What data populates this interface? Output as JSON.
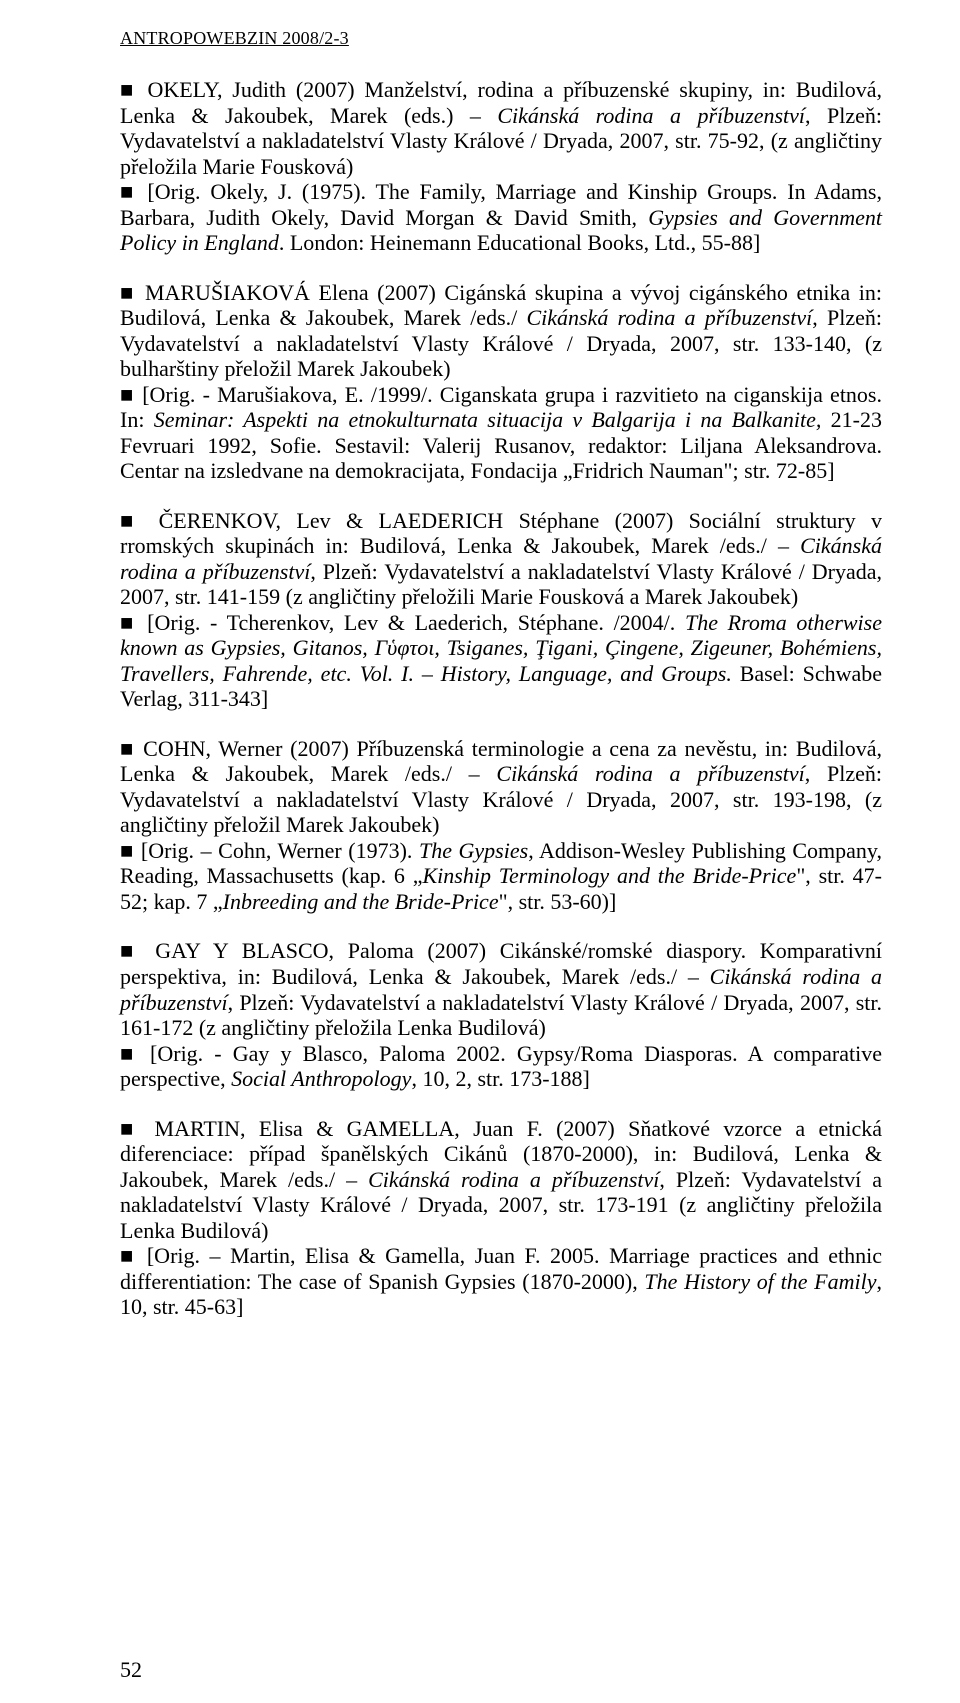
{
  "header": "ANTROPOWEBZIN 2008/2-3",
  "page_number": "52",
  "entries": [
    {
      "main_segments": [
        {
          "text": "■ OKELY, Judith (2007) Manželství, rodina a příbuzenské skupiny, in: Budilová, Lenka & Jakoubek, Marek (eds.) – "
        },
        {
          "text": "Cikánská rodina a příbuzenství",
          "italic": true
        },
        {
          "text": ", Plzeň: Vydavatelství a nakladatelství Vlasty Králové / Dryada, 2007, str. 75-92, (z angličtiny přeložila Marie Fousková)"
        }
      ],
      "orig_segments": [
        {
          "text": "■ [Orig. Okely, J. (1975). The Family, Marriage and Kinship Groups. In Adams, Barbara, Judith Okely, David Morgan & David Smith, "
        },
        {
          "text": "Gypsies and Government Policy in England",
          "italic": true
        },
        {
          "text": ". London: Heinemann Educational Books, Ltd., 55-88]"
        }
      ]
    },
    {
      "main_segments": [
        {
          "text": "■ MARUŠIAKOVÁ Elena (2007) Cigánská skupina a vývoj cigánského etnika in: Budilová, Lenka & Jakoubek, Marek /eds./ "
        },
        {
          "text": "Cikánská rodina a příbuzenství",
          "italic": true
        },
        {
          "text": ", Plzeň: Vydavatelství a nakladatelství Vlasty Králové / Dryada, 2007, str. 133-140, (z bulharštiny přeložil Marek Jakoubek)"
        }
      ],
      "orig_segments": [
        {
          "text": "■ [Orig. - Marušiakova, E. /1999/. Ciganskata grupa i razvitieto na ciganskija etnos. In: "
        },
        {
          "text": "Seminar: Aspekti na etnokulturnata situacija v Balgarija i na Balkanite, ",
          "italic": true
        },
        {
          "text": "21-23 Fevruari 1992, Sofie. Sestavil: Valerij Rusanov, redaktor: Liljana Aleksandrova. Centar na izsledvane na demokracijata, Fondacija „Fridrich Nauman\"; str. 72-85]"
        }
      ]
    },
    {
      "main_segments": [
        {
          "text": "■ ČERENKOV, Lev & LAEDERICH Stéphane (2007) Sociální struktury v rromských  skupinách in: Budilová, Lenka & Jakoubek, Marek /eds./ – "
        },
        {
          "text": "Cikánská rodina a příbuzenství",
          "italic": true
        },
        {
          "text": ", Plzeň: Vydavatelství a nakladatelství Vlasty Králové / Dryada, 2007, str. 141-159 (z angličtiny přeložili Marie Fousková a Marek Jakoubek)"
        }
      ],
      "orig_segments": [
        {
          "text": "■ [Orig. - Tcherenkov, Lev & Laederich, Stéphane. /2004/. "
        },
        {
          "text": "The Rroma otherwise known as Gypsies, Gitanos, Γὑφτοι, Tsiganes, Ţigani, Çingene, Zigeuner, Bohémiens, Travellers, Fahrende, etc. Vol. I. – History, Language, and Groups. ",
          "italic": true
        },
        {
          "text": "Basel: Schwabe Verlag, 311-343]"
        }
      ]
    },
    {
      "main_segments": [
        {
          "text": "■ COHN, Werner (2007) Příbuzenská terminologie a cena za nevěstu, in: Budilová, Lenka & Jakoubek, Marek /eds./ – "
        },
        {
          "text": "Cikánská rodina a příbuzenství",
          "italic": true
        },
        {
          "text": ", Plzeň: Vydavatelství a nakladatelství Vlasty Králové / Dryada, 2007, str. 193-198, (z angličtiny přeložil Marek Jakoubek)"
        }
      ],
      "orig_segments": [
        {
          "text": "■ [Orig. – Cohn, Werner (1973). "
        },
        {
          "text": "The Gypsies",
          "italic": true
        },
        {
          "text": ", Addison-Wesley Publishing Company, Reading, Massachusetts (kap. 6 „"
        },
        {
          "text": "Kinship Terminology and the Bride-Price",
          "italic": true
        },
        {
          "text": "\", str. 47-52; kap. 7 „"
        },
        {
          "text": "Inbreeding and the Bride-Price",
          "italic": true
        },
        {
          "text": "\", str. 53-60)]"
        }
      ]
    },
    {
      "main_segments": [
        {
          "text": "■ GAY Y BLASCO, Paloma (2007) Cikánské/romské diaspory. Komparativní perspektiva, in: Budilová, Lenka & Jakoubek, Marek /eds./ – "
        },
        {
          "text": "Cikánská rodina a příbuzenství",
          "italic": true
        },
        {
          "text": ", Plzeň: Vydavatelství a nakladatelství Vlasty Králové / Dryada, 2007, str. 161-172 (z angličtiny přeložila Lenka Budilová)"
        }
      ],
      "orig_segments": [
        {
          "text": "■ [Orig. - Gay y Blasco, Paloma 2002. Gypsy/Roma Diasporas. A comparative perspective, "
        },
        {
          "text": "Social Anthropology",
          "italic": true
        },
        {
          "text": ", 10, 2, str. 173-188]"
        }
      ]
    },
    {
      "main_segments": [
        {
          "text": "■ MARTIN, Elisa & GAMELLA, Juan F. (2007) Sňatkové vzorce a etnická diferenciace: případ španělských Cikánů (1870-2000), in: Budilová, Lenka & Jakoubek, Marek /eds./ – "
        },
        {
          "text": "Cikánská rodina a příbuzenství",
          "italic": true
        },
        {
          "text": ", Plzeň: Vydavatelství a nakladatelství Vlasty Králové / Dryada, 2007, str. 173-191 (z angličtiny přeložila Lenka Budilová)"
        }
      ],
      "orig_segments": [
        {
          "text": "■ [Orig. – Martin, Elisa & Gamella, Juan F. 2005. Marriage practices and ethnic differentiation: The case of Spanish Gypsies (1870-2000), "
        },
        {
          "text": "The History of the Family",
          "italic": true
        },
        {
          "text": ", 10, str. 45-63]"
        }
      ]
    }
  ]
}
